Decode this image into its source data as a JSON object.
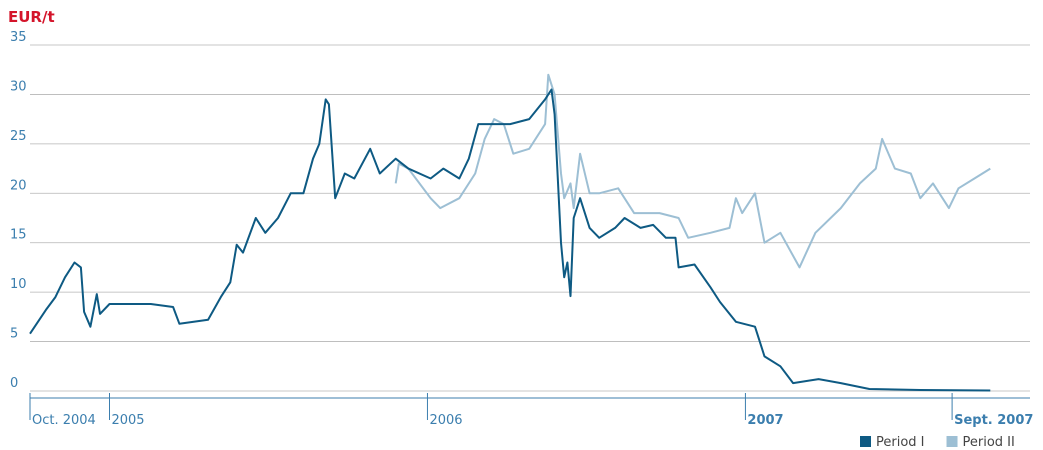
{
  "chart_data": {
    "type": "line",
    "ylabel": "EUR/t",
    "xlim": [
      2004.75,
      2007.895
    ],
    "ylim": [
      0,
      35
    ],
    "yticks": [
      0,
      5,
      10,
      15,
      20,
      25,
      30,
      35
    ],
    "xticks": [
      {
        "value": 2004.75,
        "label": "Oct. 2004"
      },
      {
        "value": 2005,
        "label": "2005"
      },
      {
        "value": 2006,
        "label": "2006"
      },
      {
        "value": 2007,
        "label": "2007",
        "bold": true
      },
      {
        "value": 2007.65,
        "label": "Sept. 2007",
        "bold": true
      }
    ],
    "grid": true,
    "legend": "bottom-right",
    "series": [
      {
        "name": "Period I",
        "color": "#0e5a83",
        "x": [
          2004.75,
          2004.8,
          2004.83,
          2004.86,
          2004.89,
          2004.91,
          2004.92,
          2004.94,
          2004.96,
          2004.97,
          2005.0,
          2005.13,
          2005.2,
          2005.22,
          2005.31,
          2005.35,
          2005.38,
          2005.4,
          2005.42,
          2005.46,
          2005.49,
          2005.53,
          2005.57,
          2005.61,
          2005.64,
          2005.66,
          2005.68,
          2005.69,
          2005.71,
          2005.74,
          2005.77,
          2005.82,
          2005.85,
          2005.9,
          2005.94,
          2006.01,
          2006.05,
          2006.1,
          2006.13,
          2006.16,
          2006.21,
          2006.26,
          2006.32,
          2006.37,
          2006.39,
          2006.4,
          2006.42,
          2006.43,
          2006.44,
          2006.45,
          2006.46,
          2006.48,
          2006.51,
          2006.54,
          2006.59,
          2006.62,
          2006.67,
          2006.71,
          2006.75,
          2006.78,
          2006.79,
          2006.84,
          2006.89,
          2006.92,
          2006.97,
          2007.03,
          2007.06,
          2007.11,
          2007.15,
          2007.23,
          2007.3,
          2007.39,
          2007.55,
          2007.77
        ],
        "values": [
          5.8,
          8.2,
          9.5,
          11.5,
          13,
          12.5,
          8,
          6.5,
          9.8,
          7.8,
          8.8,
          8.8,
          8.5,
          6.8,
          7.2,
          9.5,
          11,
          14.8,
          14,
          17.5,
          16,
          17.5,
          20,
          20,
          23.5,
          25,
          29.5,
          29,
          19.5,
          22,
          21.5,
          24.5,
          22,
          23.5,
          22.5,
          21.5,
          22.5,
          21.5,
          23.5,
          27,
          27,
          27,
          27.5,
          29.5,
          30.5,
          28,
          15,
          11.5,
          13,
          9.6,
          17.5,
          19.5,
          16.5,
          15.5,
          16.5,
          17.5,
          16.5,
          16.8,
          15.5,
          15.5,
          12.5,
          12.8,
          10.5,
          9,
          7,
          6.5,
          3.5,
          2.5,
          0.8,
          1.2,
          0.8,
          0.2,
          0.1,
          0.05
        ]
      },
      {
        "name": "Period II",
        "color": "#9dbfd4",
        "x": [
          2005.9,
          2005.91,
          2005.94,
          2006.01,
          2006.04,
          2006.1,
          2006.15,
          2006.18,
          2006.21,
          2006.24,
          2006.27,
          2006.32,
          2006.37,
          2006.38,
          2006.4,
          2006.42,
          2006.43,
          2006.45,
          2006.46,
          2006.48,
          2006.51,
          2006.54,
          2006.6,
          2006.65,
          2006.73,
          2006.79,
          2006.82,
          2006.89,
          2006.95,
          2006.97,
          2006.99,
          2007.03,
          2007.06,
          2007.11,
          2007.17,
          2007.22,
          2007.3,
          2007.36,
          2007.41,
          2007.43,
          2007.47,
          2007.52,
          2007.55,
          2007.59,
          2007.64,
          2007.67,
          2007.72,
          2007.77
        ],
        "values": [
          21,
          23,
          22.5,
          19.5,
          18.5,
          19.5,
          22,
          25.5,
          27.5,
          27,
          24,
          24.5,
          27,
          32,
          30,
          22,
          19.5,
          21,
          18.5,
          24,
          20,
          20,
          20.5,
          18,
          18,
          17.5,
          15.5,
          16,
          16.5,
          19.5,
          18,
          20,
          15,
          16,
          12.5,
          16,
          18.5,
          21,
          22.5,
          25.5,
          22.5,
          22,
          19.5,
          21,
          18.5,
          20.5,
          21.5,
          22.5
        ]
      }
    ]
  }
}
